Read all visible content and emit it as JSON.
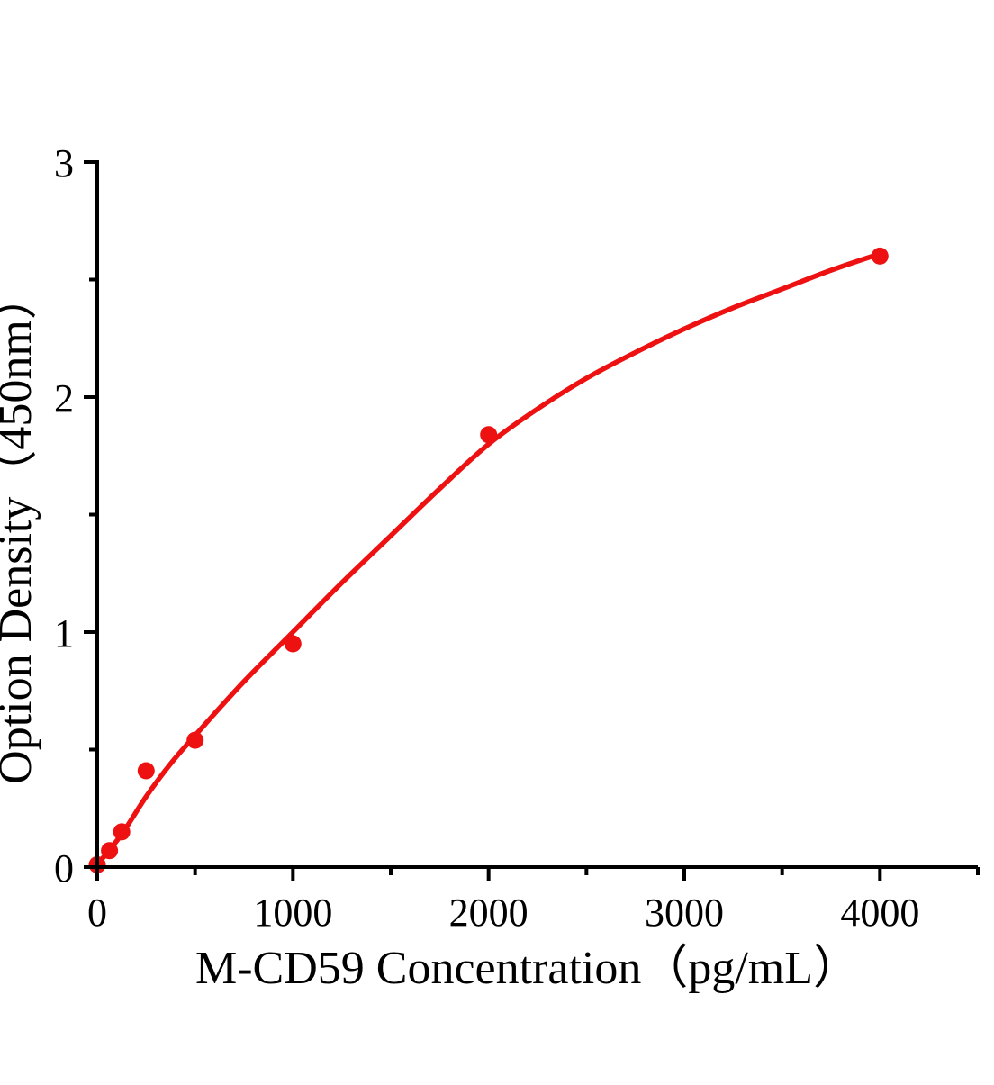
{
  "chart_data": {
    "type": "scatter",
    "title": "",
    "xlabel": "M-CD59 Concentration（pg/mL）",
    "ylabel": "Option Density（450nm）",
    "xlim": [
      0,
      4500
    ],
    "ylim": [
      0,
      3
    ],
    "grid": false,
    "legend": "none",
    "x_major_ticks": [
      0,
      1000,
      2000,
      3000,
      4000
    ],
    "x_major_tick_labels": [
      "0",
      "1000",
      "2000",
      "3000",
      "4000"
    ],
    "x_minor_ticks": [
      500,
      1500,
      2500,
      3500,
      4500
    ],
    "y_major_ticks": [
      0,
      1,
      2,
      3
    ],
    "y_major_tick_labels": [
      "0",
      "1",
      "2",
      "3"
    ],
    "y_minor_ticks": [
      0.5,
      1.5,
      2.5
    ],
    "series": [
      {
        "name": "standard-data-points",
        "type": "scatter",
        "marker": "circle",
        "color": "#ee1111",
        "x": [
          0,
          62.5,
          125,
          250,
          500,
          1000,
          2000,
          4000
        ],
        "y": [
          0.01,
          0.07,
          0.15,
          0.41,
          0.54,
          0.95,
          1.84,
          2.6
        ]
      },
      {
        "name": "fitted-standard-curve",
        "type": "line",
        "color": "#ee1111",
        "x": [
          0,
          125,
          250,
          375,
          500,
          750,
          1000,
          1250,
          1500,
          1750,
          2000,
          2250,
          2500,
          2750,
          3000,
          3250,
          3500,
          3750,
          4000
        ],
        "y": [
          0.01,
          0.14,
          0.3,
          0.44,
          0.56,
          0.79,
          1.0,
          1.21,
          1.41,
          1.61,
          1.8,
          1.95,
          2.08,
          2.19,
          2.29,
          2.38,
          2.46,
          2.54,
          2.61
        ]
      }
    ],
    "colors": {
      "accent_red": "#ee1111",
      "axis_black": "#000000",
      "background": "#ffffff"
    }
  }
}
